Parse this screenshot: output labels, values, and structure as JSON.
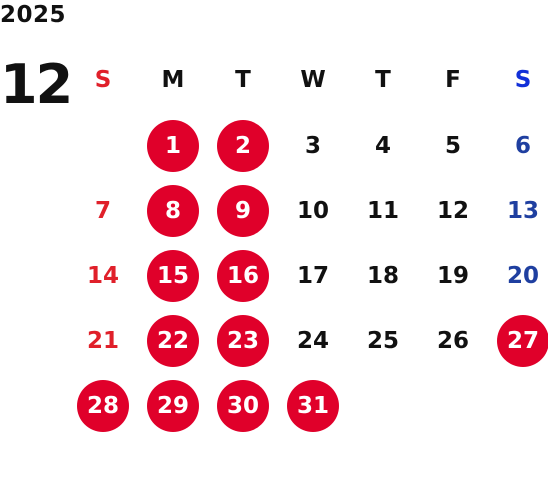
{
  "year": "2025",
  "month": "12",
  "colors": {
    "holiday_circle": "#e0002a",
    "sunday": "#e0202a",
    "saturday": "#1f3fa0",
    "weekday": "#111111"
  },
  "weekdays": [
    "S",
    "M",
    "T",
    "W",
    "T",
    "F",
    "S"
  ],
  "days": [
    "",
    "1",
    "2",
    "3",
    "4",
    "5",
    "6",
    "7",
    "8",
    "9",
    "10",
    "11",
    "12",
    "13",
    "14",
    "15",
    "16",
    "17",
    "18",
    "19",
    "20",
    "21",
    "22",
    "23",
    "24",
    "25",
    "26",
    "27",
    "28",
    "29",
    "30",
    "31",
    "",
    "",
    ""
  ],
  "highlighted_days": [
    "1",
    "2",
    "8",
    "9",
    "15",
    "16",
    "22",
    "23",
    "27",
    "28",
    "29",
    "30",
    "31"
  ]
}
